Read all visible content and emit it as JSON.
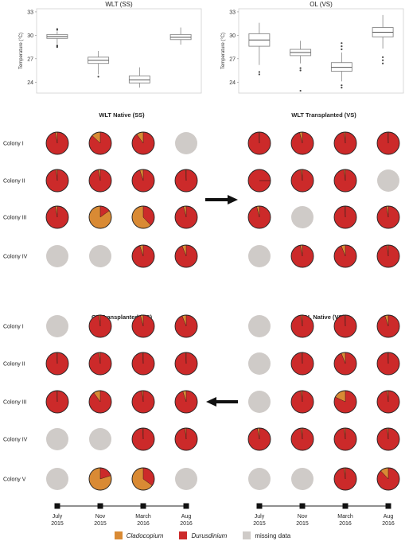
{
  "colors": {
    "cladocopium": "#d98a34",
    "durusdinium": "#cc2a2a",
    "missing": "#cfcbc8",
    "box_stroke": "#888888",
    "arrow": "#111111"
  },
  "legend": {
    "items": [
      {
        "label": "Cladocopium",
        "italic": true,
        "color": "#d98a34"
      },
      {
        "label": "Durusdinium",
        "italic": true,
        "color": "#cc2a2a"
      },
      {
        "label": "missing data",
        "italic": false,
        "color": "#cfcbc8"
      }
    ]
  },
  "timeline": {
    "points": [
      "July 2015",
      "Nov 2015",
      "March 2016",
      "Aug 2016"
    ]
  },
  "chart_data": [
    {
      "type": "box",
      "title": "WLT (SS)",
      "ylabel": "Temperature (°C)",
      "yticks": [
        24,
        27,
        30,
        33
      ],
      "ylim": [
        22.6,
        33.4
      ],
      "boxes": [
        {
          "min": 28.9,
          "q1": 29.6,
          "median": 29.85,
          "q3": 30.1,
          "max": 30.5,
          "outliers": [
            28.5,
            28.6,
            28.7,
            30.7,
            30.8
          ]
        },
        {
          "min": 25.0,
          "q1": 26.4,
          "median": 26.8,
          "q3": 27.2,
          "max": 28.0,
          "outliers": [
            24.7
          ]
        },
        {
          "min": 23.3,
          "q1": 23.9,
          "median": 24.3,
          "q3": 24.8,
          "max": 25.9,
          "outliers": []
        },
        {
          "min": 28.8,
          "q1": 29.45,
          "median": 29.75,
          "q3": 30.1,
          "max": 31.0,
          "outliers": []
        }
      ]
    },
    {
      "type": "box",
      "title": "OL (VS)",
      "ylabel": "Temperature (°C)",
      "yticks": [
        24,
        27,
        30,
        33
      ],
      "ylim": [
        22.6,
        33.4
      ],
      "boxes": [
        {
          "min": 26.2,
          "q1": 28.6,
          "median": 29.4,
          "q3": 30.2,
          "max": 31.6,
          "outliers": [
            25.0,
            25.3
          ]
        },
        {
          "min": 26.4,
          "q1": 27.4,
          "median": 27.8,
          "q3": 28.2,
          "max": 29.3,
          "outliers": [
            25.5,
            25.8,
            22.9
          ]
        },
        {
          "min": 24.1,
          "q1": 25.4,
          "median": 25.9,
          "q3": 26.5,
          "max": 27.8,
          "outliers": [
            23.3,
            23.6,
            28.2,
            28.6,
            29.0
          ]
        },
        {
          "min": 28.3,
          "q1": 29.8,
          "median": 30.4,
          "q3": 31.0,
          "max": 32.6,
          "outliers": [
            26.4,
            26.8,
            27.2
          ]
        }
      ]
    },
    {
      "type": "pie-matrix",
      "title": "WLT Native (SS)",
      "rows": [
        {
          "label": "Colony I",
          "cladocopium": [
            0.03,
            0.13,
            0.1,
            null
          ]
        },
        {
          "label": "Colony II",
          "cladocopium": [
            0.02,
            0.03,
            0.05,
            0.01
          ]
        },
        {
          "label": "Colony III",
          "cladocopium": [
            0.03,
            0.85,
            0.62,
            0.04
          ]
        },
        {
          "label": "Colony IV",
          "cladocopium": [
            null,
            null,
            0.05,
            0.06
          ]
        }
      ]
    },
    {
      "type": "pie-matrix",
      "title": "WLT Transplanted (VS)",
      "rows": [
        {
          "label": "",
          "cladocopium": [
            0.01,
            0.04,
            0.02,
            0.01
          ]
        },
        {
          "label": "",
          "cladocopium": [
            0.0,
            0.02,
            0.02,
            null
          ]
        },
        {
          "label": "",
          "cladocopium": [
            0.04,
            null,
            0.01,
            0.03
          ]
        },
        {
          "label": "",
          "cladocopium": [
            null,
            0.03,
            0.06,
            0.02
          ]
        }
      ]
    },
    {
      "type": "pie-matrix",
      "title": "OL Transplanted (SS)",
      "rows": [
        {
          "label": "Colony I",
          "cladocopium": [
            null,
            0.02,
            0.04,
            0.06
          ]
        },
        {
          "label": "Colony II",
          "cladocopium": [
            0.01,
            0.02,
            0.01,
            0.01
          ]
        },
        {
          "label": "Colony III",
          "cladocopium": [
            0.01,
            0.1,
            0.02,
            0.05
          ]
        },
        {
          "label": "Colony IV",
          "cladocopium": [
            null,
            null,
            0.01,
            0.02
          ]
        },
        {
          "label": "Colony V",
          "cladocopium": [
            null,
            0.8,
            0.65,
            null
          ]
        }
      ]
    },
    {
      "type": "pie-matrix",
      "title": "OL Native (VS)",
      "rows": [
        {
          "label": "",
          "cladocopium": [
            null,
            0.02,
            0.01,
            0.05
          ]
        },
        {
          "label": "",
          "cladocopium": [
            null,
            0.01,
            0.06,
            0.01
          ]
        },
        {
          "label": "",
          "cladocopium": [
            null,
            0.02,
            0.18,
            0.02
          ]
        },
        {
          "label": "",
          "cladocopium": [
            0.03,
            0.02,
            0.02,
            0.02
          ]
        },
        {
          "label": "",
          "cladocopium": [
            null,
            null,
            0.02,
            0.12
          ]
        }
      ]
    }
  ]
}
